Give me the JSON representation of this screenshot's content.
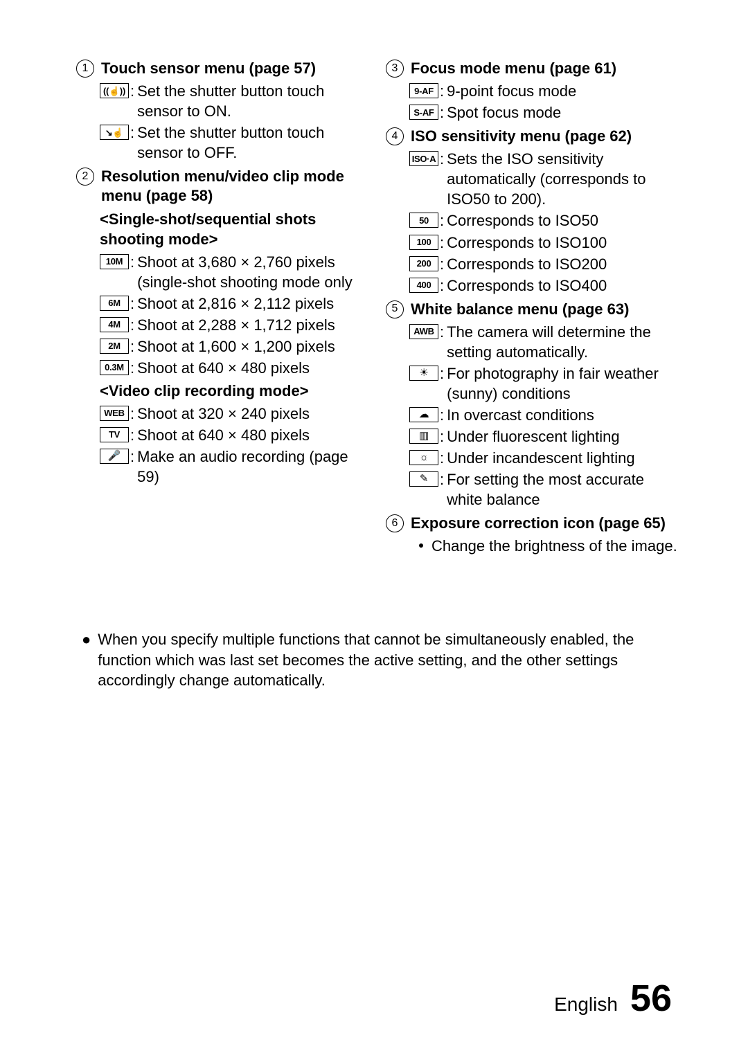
{
  "page": {
    "language_label": "English",
    "page_number": "56"
  },
  "note": "When you specify multiple functions that cannot be simultaneously enabled, the function which was last set becomes the active setting, and the other settings accordingly change automatically.",
  "sections": [
    {
      "num": "1",
      "title": "Touch sensor menu (page 57)",
      "groups": [
        {
          "items": [
            {
              "icon": "touch-on-icon",
              "icon_label": "((☝))",
              "text": "Set the shutter button touch sensor to ON."
            },
            {
              "icon": "touch-off-icon",
              "icon_label": "↘☝",
              "text": "Set the shutter button touch sensor to OFF."
            }
          ]
        }
      ]
    },
    {
      "num": "2",
      "title": "Resolution menu/video clip mode menu (page 58)",
      "groups": [
        {
          "subhead": "<Single-shot/sequential shots shooting mode>",
          "items": [
            {
              "icon": "res-10m-icon",
              "icon_label": "10M",
              "text": "Shoot at 3,680 × 2,760 pixels (single-shot shooting mode only"
            },
            {
              "icon": "res-6m-icon",
              "icon_label": "6M",
              "text": "Shoot at 2,816 × 2,112 pixels"
            },
            {
              "icon": "res-4m-icon",
              "icon_label": "4M",
              "text": "Shoot at 2,288 × 1,712 pixels"
            },
            {
              "icon": "res-2m-icon",
              "icon_label": "2M",
              "text": "Shoot at 1,600 × 1,200 pixels"
            },
            {
              "icon": "res-0_3m-icon",
              "icon_label": "0.3M",
              "text": "Shoot at 640 × 480 pixels"
            }
          ]
        },
        {
          "subhead": "<Video clip recording mode>",
          "items": [
            {
              "icon": "video-web-icon",
              "icon_label": "WEB",
              "text": "Shoot at 320 × 240 pixels"
            },
            {
              "icon": "video-tv-icon",
              "icon_label": "TV",
              "text": "Shoot at 640 × 480 pixels"
            },
            {
              "icon": "audio-rec-icon",
              "icon_label": "🎤",
              "sym": true,
              "text": "Make an audio recording (page 59)"
            }
          ]
        }
      ]
    },
    {
      "num": "3",
      "title": "Focus mode menu (page 61)",
      "groups": [
        {
          "items": [
            {
              "icon": "focus-9pt-icon",
              "icon_label": "9-AF",
              "text": "9-point focus mode"
            },
            {
              "icon": "focus-spot-icon",
              "icon_label": "S-AF",
              "text": "Spot focus mode"
            }
          ]
        }
      ]
    },
    {
      "num": "4",
      "title": "ISO sensitivity menu (page 62)",
      "groups": [
        {
          "items": [
            {
              "icon": "iso-auto-icon",
              "icon_label": "ISO·A",
              "text": "Sets the ISO sensitivity automatically (corresponds to ISO50 to 200)."
            },
            {
              "icon": "iso-50-icon",
              "icon_label": "50",
              "text": "Corresponds to ISO50"
            },
            {
              "icon": "iso-100-icon",
              "icon_label": "100",
              "text": "Corresponds to ISO100"
            },
            {
              "icon": "iso-200-icon",
              "icon_label": "200",
              "text": "Corresponds to ISO200"
            },
            {
              "icon": "iso-400-icon",
              "icon_label": "400",
              "text": "Corresponds to ISO400"
            }
          ]
        }
      ]
    },
    {
      "num": "5",
      "title": "White balance menu (page 63)",
      "groups": [
        {
          "items": [
            {
              "icon": "wb-auto-icon",
              "icon_label": "AWB",
              "text": "The camera will determine the setting automatically."
            },
            {
              "icon": "wb-sunny-icon",
              "icon_label": "☀",
              "sym": true,
              "text": "For photography in fair weather (sunny) conditions"
            },
            {
              "icon": "wb-cloudy-icon",
              "icon_label": "☁",
              "sym": true,
              "text": "In overcast conditions"
            },
            {
              "icon": "wb-fluorescent-icon",
              "icon_label": "▥",
              "sym": true,
              "text": "Under fluorescent lighting"
            },
            {
              "icon": "wb-incandescent-icon",
              "icon_label": "☼",
              "sym": true,
              "text": "Under incandescent lighting"
            },
            {
              "icon": "wb-manual-icon",
              "icon_label": "✎",
              "sym": true,
              "text": "For setting the most accurate white balance"
            }
          ]
        }
      ]
    },
    {
      "num": "6",
      "title": "Exposure correction icon (page 65)",
      "groups": [
        {
          "items": [
            {
              "bullet": true,
              "text": "Change the brightness of the image."
            }
          ]
        }
      ]
    }
  ],
  "layout": {
    "left_sections": [
      0,
      1
    ],
    "right_sections": [
      2,
      3,
      4,
      5
    ]
  }
}
